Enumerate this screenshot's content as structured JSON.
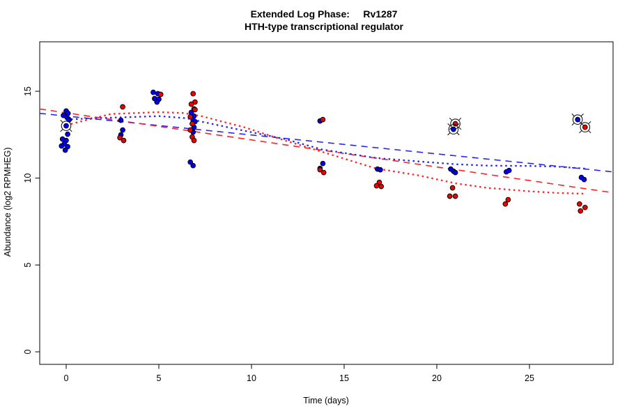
{
  "chart_data": {
    "type": "scatter",
    "title": "Extended Log Phase:     Rv1287",
    "subtitle": "HTH-type transcriptional regulator",
    "xlabel": "Time  (days)",
    "ylabel": "Abundance  (log2 RPMHEG)",
    "xlim": [
      -1.43,
      29.5
    ],
    "ylim": [
      -0.72,
      17.87
    ],
    "xticks": [
      0,
      5,
      10,
      15,
      20,
      25
    ],
    "yticks": [
      0,
      5,
      10,
      15
    ],
    "grid": false,
    "legend": "none",
    "colors": {
      "blue": "#0000EE",
      "red": "#EE0000",
      "blue_line": "#2222FF",
      "red_line": "#FF2222",
      "marker_edge": "#000000"
    },
    "series": [
      {
        "name": "blue-points",
        "color": "#0000EE",
        "points": [
          [
            0,
            13.86
          ],
          [
            0.1,
            13.73
          ],
          [
            -0.15,
            13.61
          ],
          [
            0.05,
            13.49
          ],
          [
            0.15,
            13.37
          ],
          [
            0.08,
            12.53
          ],
          [
            -0.2,
            12.25
          ],
          [
            0,
            12.17
          ],
          [
            -0.1,
            11.97
          ],
          [
            -0.25,
            11.85
          ],
          [
            0.08,
            11.81
          ],
          [
            -0.05,
            11.61
          ],
          [
            2.95,
            13.33
          ],
          [
            3.05,
            12.77
          ],
          [
            2.95,
            12.49
          ],
          [
            4.7,
            14.94
          ],
          [
            4.95,
            14.86
          ],
          [
            4.77,
            14.58
          ],
          [
            5.0,
            14.54
          ],
          [
            4.9,
            14.38
          ],
          [
            6.75,
            13.78
          ],
          [
            6.9,
            13.57
          ],
          [
            6.85,
            13.33
          ],
          [
            6.95,
            13.25
          ],
          [
            6.9,
            12.93
          ],
          [
            6.85,
            12.65
          ],
          [
            6.7,
            10.92
          ],
          [
            6.85,
            10.72
          ],
          [
            13.7,
            13.29
          ],
          [
            13.85,
            10.84
          ],
          [
            13.7,
            10.56
          ],
          [
            16.8,
            10.52
          ],
          [
            16.95,
            10.48
          ],
          [
            20.75,
            10.52
          ],
          [
            20.9,
            10.4
          ],
          [
            21.0,
            10.32
          ],
          [
            23.75,
            10.36
          ],
          [
            23.9,
            10.44
          ],
          [
            27.8,
            10.04
          ],
          [
            27.95,
            9.92
          ]
        ]
      },
      {
        "name": "red-points",
        "color": "#EE0000",
        "points": [
          [
            3.05,
            14.1
          ],
          [
            2.9,
            12.33
          ],
          [
            3.1,
            12.17
          ],
          [
            5.1,
            14.82
          ],
          [
            6.85,
            14.86
          ],
          [
            6.95,
            14.38
          ],
          [
            6.75,
            14.26
          ],
          [
            6.9,
            13.98
          ],
          [
            6.95,
            13.94
          ],
          [
            6.7,
            13.53
          ],
          [
            6.8,
            13.13
          ],
          [
            6.7,
            12.77
          ],
          [
            6.8,
            12.37
          ],
          [
            6.9,
            12.17
          ],
          [
            13.85,
            13.37
          ],
          [
            13.7,
            10.48
          ],
          [
            13.9,
            10.32
          ],
          [
            16.9,
            9.76
          ],
          [
            16.75,
            9.56
          ],
          [
            17.0,
            9.52
          ],
          [
            20.85,
            9.44
          ],
          [
            20.7,
            8.96
          ],
          [
            21.0,
            8.96
          ],
          [
            23.85,
            8.76
          ],
          [
            23.7,
            8.51
          ],
          [
            27.7,
            8.51
          ],
          [
            27.75,
            8.11
          ],
          [
            28.0,
            8.31
          ]
        ]
      }
    ],
    "circled_outliers": [
      {
        "color": "#0000EE",
        "point": [
          0,
          13.01
        ]
      },
      {
        "color": "#EE0000",
        "point": [
          21.0,
          13.13
        ]
      },
      {
        "color": "#0000EE",
        "point": [
          20.9,
          12.81
        ]
      },
      {
        "color": "#0000EE",
        "point": [
          27.6,
          13.37
        ]
      },
      {
        "color": "#EE0000",
        "point": [
          28.0,
          12.93
        ]
      }
    ],
    "lines": [
      {
        "name": "blue-linear-fit",
        "color": "#2222FF",
        "style": "dashed",
        "points": [
          [
            -1.43,
            13.73
          ],
          [
            29.5,
            10.36
          ]
        ]
      },
      {
        "name": "red-linear-fit",
        "color": "#FF2222",
        "style": "dashed",
        "points": [
          [
            -1.43,
            13.98
          ],
          [
            29.5,
            9.16
          ]
        ]
      },
      {
        "name": "blue-smooth-fit",
        "color": "#2222FF",
        "style": "dotted",
        "points": [
          [
            0,
            13.37
          ],
          [
            1.5,
            13.45
          ],
          [
            3,
            13.5
          ],
          [
            5,
            13.57
          ],
          [
            6.5,
            13.45
          ],
          [
            7.3,
            13.25
          ],
          [
            9.6,
            12.73
          ],
          [
            11.8,
            12.25
          ],
          [
            13.8,
            11.65
          ],
          [
            16.7,
            11.16
          ],
          [
            19,
            10.96
          ],
          [
            21,
            10.8
          ],
          [
            22.7,
            10.72
          ],
          [
            25,
            10.7
          ],
          [
            26.5,
            10.66
          ],
          [
            28,
            10.55
          ]
        ]
      },
      {
        "name": "red-smooth-fit",
        "color": "#FF2222",
        "style": "dotted",
        "points": [
          [
            0,
            13.05
          ],
          [
            1.5,
            13.45
          ],
          [
            2.4,
            13.69
          ],
          [
            5,
            13.8
          ],
          [
            6.3,
            13.75
          ],
          [
            7.3,
            13.57
          ],
          [
            9.6,
            12.93
          ],
          [
            11.8,
            12.17
          ],
          [
            14,
            11.45
          ],
          [
            16.7,
            10.56
          ],
          [
            19,
            10.16
          ],
          [
            21,
            9.7
          ],
          [
            22.7,
            9.44
          ],
          [
            25,
            9.24
          ],
          [
            26.5,
            9.15
          ],
          [
            28,
            9.1
          ]
        ]
      }
    ]
  }
}
